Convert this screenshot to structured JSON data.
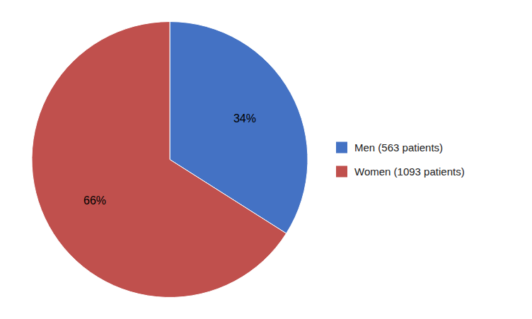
{
  "chart_data": {
    "type": "pie",
    "categories": [
      "Men (563 patients)",
      "Women (1093 patients)"
    ],
    "values": [
      34,
      66
    ],
    "value_labels": [
      "34%",
      "66%"
    ],
    "colors": [
      "#4472C4",
      "#C0504D"
    ],
    "data_labels": true,
    "legend": "right"
  }
}
